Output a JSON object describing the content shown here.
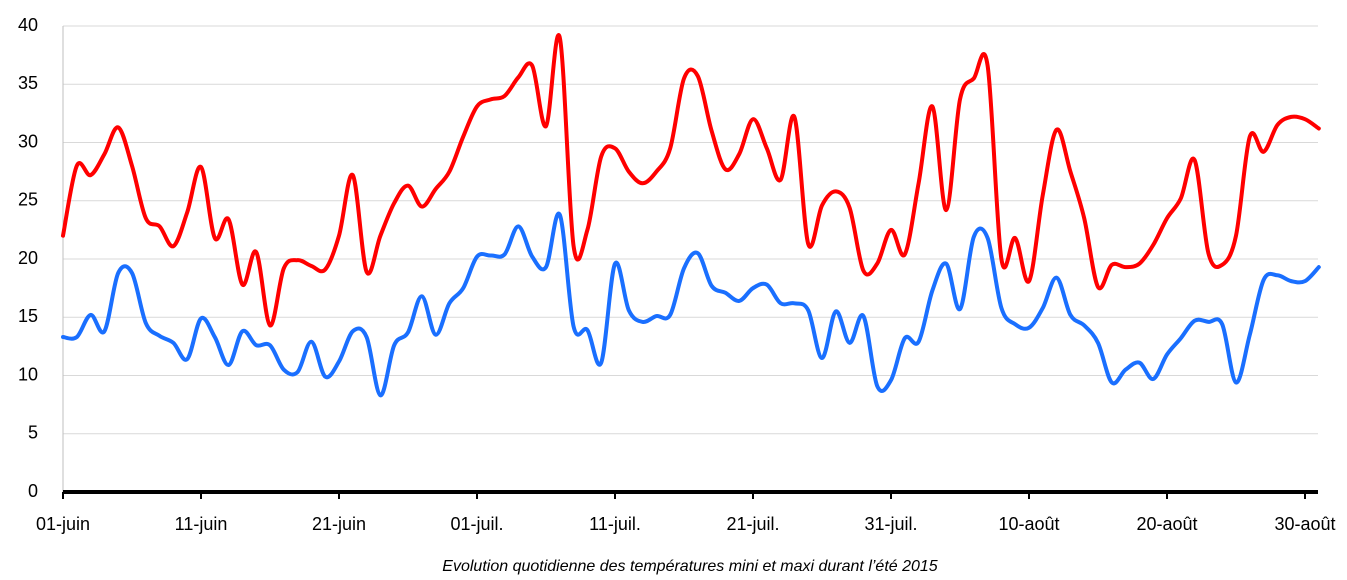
{
  "chart_data": {
    "type": "line",
    "title": "Evolution quotidienne des températures mini et maxi durant l’été 2015",
    "categories": [
      "01-juin",
      null,
      null,
      null,
      null,
      null,
      null,
      null,
      null,
      null,
      "11-juin",
      null,
      null,
      null,
      null,
      null,
      null,
      null,
      null,
      null,
      "21-juin",
      null,
      null,
      null,
      null,
      null,
      null,
      null,
      null,
      null,
      "01-juil.",
      null,
      null,
      null,
      null,
      null,
      null,
      null,
      null,
      null,
      "11-juil.",
      null,
      null,
      null,
      null,
      null,
      null,
      null,
      null,
      null,
      "21-juil.",
      null,
      null,
      null,
      null,
      null,
      null,
      null,
      null,
      null,
      "31-juil.",
      null,
      null,
      null,
      null,
      null,
      null,
      null,
      null,
      null,
      "10-août",
      null,
      null,
      null,
      null,
      null,
      null,
      null,
      null,
      null,
      "20-août",
      null,
      null,
      null,
      null,
      null,
      null,
      null,
      null,
      null,
      "30-août",
      null
    ],
    "series": [
      {
        "color": "#ff0000",
        "values": [
          22,
          28,
          27.2,
          29,
          31.3,
          28,
          23.5,
          22.8,
          21.1,
          24,
          27.9,
          21.8,
          23.4,
          17.8,
          20.6,
          14.3,
          19.2,
          19.9,
          19.4,
          19.1,
          22,
          27.2,
          18.9,
          22,
          24.8,
          26.3,
          24.5,
          26,
          27.5,
          30.5,
          33.1,
          33.7,
          34,
          35.6,
          36.6,
          31.4,
          39,
          21.1,
          22.5,
          28.8,
          29.5,
          27.5,
          26.5,
          27.5,
          29.5,
          35.5,
          35.7,
          31,
          27.7,
          29,
          32,
          29.5,
          26.8,
          32.2,
          21.3,
          24.6,
          25.8,
          24.4,
          19,
          19.6,
          22.5,
          20.4,
          26.5,
          33.1,
          24.2,
          33.7,
          35.5,
          36.6,
          20,
          21.8,
          18.1,
          25.5,
          31.1,
          27.5,
          23.5,
          17.6,
          19.5,
          19.3,
          19.6,
          21.2,
          23.5,
          25.2,
          28.5,
          20.5,
          19.5,
          22,
          30.5,
          29.2,
          31.5,
          32.2,
          32,
          31.2
        ]
      },
      {
        "color": "#1a6fff",
        "values": [
          13.3,
          13.3,
          15.2,
          13.8,
          18.8,
          18.8,
          14.5,
          13.4,
          12.8,
          11.4,
          14.9,
          13.3,
          10.9,
          13.8,
          12.6,
          12.6,
          10.5,
          10.3,
          12.9,
          9.9,
          11.2,
          13.8,
          13.3,
          8.3,
          12.6,
          13.7,
          16.8,
          13.5,
          16.2,
          17.5,
          20.2,
          20.3,
          20.4,
          22.8,
          20.2,
          19.3,
          23.8,
          14.2,
          13.9,
          11.1,
          19.6,
          15.6,
          14.6,
          15.1,
          15.2,
          19.2,
          20.5,
          17.7,
          17.1,
          16.4,
          17.5,
          17.8,
          16.2,
          16.2,
          15.6,
          11.5,
          15.5,
          12.8,
          15.1,
          9.1,
          9.6,
          13.2,
          12.9,
          17.3,
          19.6,
          15.7,
          21.9,
          21.8,
          15.8,
          14.4,
          14.1,
          15.8,
          18.4,
          15.2,
          14.3,
          12.8,
          9.4,
          10.5,
          11.1,
          9.7,
          11.8,
          13.2,
          14.7,
          14.6,
          14.4,
          9.4,
          13.5,
          18.2,
          18.6,
          18.1,
          18.1,
          19.3
        ]
      }
    ],
    "ylim": [
      0,
      40
    ],
    "yticks": [
      0,
      5,
      10,
      15,
      20,
      25,
      30,
      35,
      40
    ],
    "grid": true
  }
}
